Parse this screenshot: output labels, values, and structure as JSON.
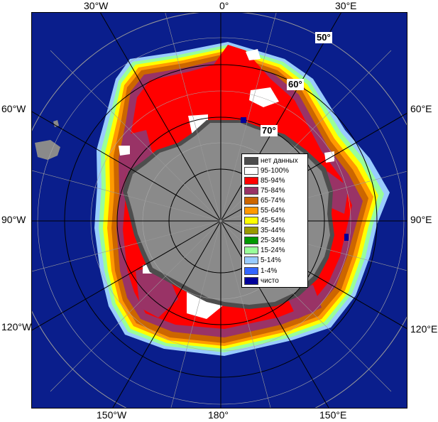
{
  "map": {
    "longitude_labels": {
      "top": [
        "30°W",
        "0°",
        "30°E"
      ],
      "bottom": [
        "150°W",
        "180°",
        "150°E"
      ],
      "left": [
        "60°W",
        "90°W",
        "120°W"
      ],
      "right": [
        "60°E",
        "90°E",
        "120°E"
      ]
    },
    "latitude_labels": [
      "50°",
      "60°",
      "70°"
    ],
    "colors": {
      "ocean": "#0a1e8c",
      "land": "#8a8a8a",
      "no_data": "#4d4d4d",
      "grid": "#999999",
      "graticule_dark": "#000000"
    }
  },
  "legend": {
    "items": [
      {
        "label": "нет данных",
        "color": "#4d4d4d"
      },
      {
        "label": "95-100%",
        "color": "#ffffff"
      },
      {
        "label": "85-94%",
        "color": "#ff0000"
      },
      {
        "label": "75-84%",
        "color": "#993366"
      },
      {
        "label": "65-74%",
        "color": "#cc6600"
      },
      {
        "label": "55-64%",
        "color": "#ff9900"
      },
      {
        "label": "45-54%",
        "color": "#ffff00"
      },
      {
        "label": "35-44%",
        "color": "#999900"
      },
      {
        "label": "25-34%",
        "color": "#009900"
      },
      {
        "label": "15-24%",
        "color": "#99ff99"
      },
      {
        "label": "5-14%",
        "color": "#99ccff"
      },
      {
        "label": "1-4%",
        "color": "#3366ff"
      },
      {
        "label": "чисто",
        "color": "#000099"
      }
    ]
  }
}
